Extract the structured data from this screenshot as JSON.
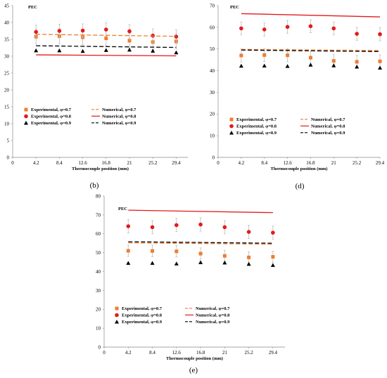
{
  "chart_data": [
    {
      "panel": "(b)",
      "type": "scatter",
      "xlabel": "Thermocouple position (mm)",
      "ylabel": "PEC",
      "x_ticks": [
        "0",
        "4.2",
        "8.4",
        "12.6",
        "16.8",
        "21",
        "25.2",
        "29.4"
      ],
      "y_ticks": [
        "0",
        "5",
        "10",
        "15",
        "20",
        "25",
        "30",
        "35",
        "40",
        "45"
      ],
      "xlim": [
        0,
        31.5
      ],
      "ylim": [
        0,
        45
      ],
      "legend_position": "lower-left",
      "series": [
        {
          "name": "Experimental, φ=0.7",
          "kind": "points",
          "marker": "square",
          "color": "#ED7D31",
          "x": [
            4.2,
            8.4,
            12.6,
            16.8,
            21,
            25.2,
            29.4
          ],
          "y": [
            35.8,
            35.9,
            35.6,
            35.3,
            34.6,
            34.2,
            34.4
          ],
          "err": [
            2.2,
            2.2,
            2.2,
            2.2,
            2.2,
            2.2,
            2.2
          ]
        },
        {
          "name": "Experimental, φ=0.8",
          "kind": "points",
          "marker": "circle",
          "color": "#E31A1C",
          "x": [
            4.2,
            8.4,
            12.6,
            16.8,
            21,
            25.2,
            29.4
          ],
          "y": [
            37.2,
            37.5,
            37.6,
            37.9,
            37.4,
            36.1,
            35.8
          ],
          "err": [
            2.0,
            2.0,
            2.0,
            2.0,
            2.0,
            2.0,
            2.0
          ]
        },
        {
          "name": "Experimental, φ=0.9",
          "kind": "points",
          "marker": "triangle",
          "color": "#000000",
          "x": [
            4.2,
            8.4,
            12.6,
            16.8,
            21,
            25.2,
            29.4
          ],
          "y": [
            31.7,
            31.7,
            31.5,
            31.8,
            31.9,
            31.6,
            31.1
          ],
          "err": [
            0,
            0,
            0,
            0,
            0,
            0,
            0
          ]
        },
        {
          "name": "Numerical, φ=0.7",
          "kind": "line",
          "dash": "6 3",
          "color": "#ED7D31",
          "x": [
            4.2,
            29.4
          ],
          "y": [
            36.5,
            35.9
          ]
        },
        {
          "name": "Numerical, φ=0.8",
          "kind": "line",
          "dash": "",
          "color": "#E31A1C",
          "x": [
            4.2,
            29.4
          ],
          "y": [
            30.4,
            30.1
          ]
        },
        {
          "name": "Numerical, φ=0.9",
          "kind": "line",
          "dash": "6 3",
          "color": "#000000",
          "x": [
            4.2,
            29.4
          ],
          "y": [
            33.1,
            32.6
          ]
        }
      ]
    },
    {
      "panel": "(d)",
      "type": "scatter",
      "xlabel": "Thermocouple position (mm)",
      "ylabel": "PEC",
      "x_ticks": [
        "0",
        "4.2",
        "8.4",
        "12.6",
        "16.8",
        "21",
        "25.2",
        "29.4"
      ],
      "y_ticks": [
        "0",
        "10",
        "20",
        "30",
        "40",
        "50",
        "60",
        "70"
      ],
      "xlim": [
        0,
        29.4
      ],
      "ylim": [
        0,
        70
      ],
      "legend_position": "lower-left",
      "series": [
        {
          "name": "Experimental, φ=0.7",
          "kind": "points",
          "marker": "square",
          "color": "#ED7D31",
          "x": [
            4.2,
            8.4,
            12.6,
            16.8,
            21,
            25.2,
            29.4
          ],
          "y": [
            47,
            47.2,
            47.1,
            46,
            44.5,
            44.1,
            44.3
          ],
          "err": [
            3,
            3,
            3,
            3,
            3,
            3,
            3
          ]
        },
        {
          "name": "Experimental, φ=0.8",
          "kind": "points",
          "marker": "circle",
          "color": "#E31A1C",
          "x": [
            4.2,
            8.4,
            12.6,
            16.8,
            21,
            25.2,
            29.4
          ],
          "y": [
            59.5,
            59,
            60.2,
            60.5,
            59.5,
            57,
            56.8
          ],
          "err": [
            3,
            3,
            3,
            3,
            3,
            3,
            3
          ]
        },
        {
          "name": "Experimental, φ=0.9",
          "kind": "points",
          "marker": "triangle",
          "color": "#000000",
          "x": [
            4.2,
            8.4,
            12.6,
            16.8,
            21,
            25.2,
            29.4
          ],
          "y": [
            42.2,
            42.3,
            42.1,
            42.7,
            42.4,
            41.8,
            41.3
          ],
          "err": [
            0,
            0,
            0,
            0,
            0,
            0,
            0
          ]
        },
        {
          "name": "Numerical, φ=0.7",
          "kind": "line",
          "dash": "6 3",
          "color": "#ED7D31",
          "x": [
            4.2,
            29.4
          ],
          "y": [
            49.8,
            49.3
          ]
        },
        {
          "name": "Numerical, φ=0.8",
          "kind": "line",
          "dash": "",
          "color": "#E31A1C",
          "x": [
            4.2,
            29.4
          ],
          "y": [
            66.3,
            64.8
          ]
        },
        {
          "name": "Numerical, φ=0.9",
          "kind": "line",
          "dash": "6 3",
          "color": "#000000",
          "x": [
            4.2,
            29.4
          ],
          "y": [
            49.5,
            48.8
          ]
        }
      ]
    },
    {
      "panel": "(e)",
      "type": "scatter",
      "xlabel": "Thermocouple position (mm)",
      "ylabel": "PEC",
      "x_ticks": [
        "0",
        "4.2",
        "8.4",
        "12.6",
        "16.8",
        "21",
        "25.2",
        "29.4"
      ],
      "y_ticks": [
        "0",
        "10",
        "20",
        "30",
        "40",
        "50",
        "60",
        "70",
        "80"
      ],
      "xlim": [
        0,
        31.5
      ],
      "ylim": [
        0,
        80
      ],
      "legend_position": "lower-left",
      "series": [
        {
          "name": "Experimental, φ=0.7",
          "kind": "points",
          "marker": "square",
          "color": "#ED7D31",
          "x": [
            4.2,
            8.4,
            12.6,
            16.8,
            21,
            25.2,
            29.4
          ],
          "y": [
            51,
            50.9,
            50.7,
            49.5,
            48.3,
            47.5,
            47.8
          ],
          "err": [
            3,
            3,
            3,
            3,
            3,
            3,
            3
          ]
        },
        {
          "name": "Experimental, φ=0.8",
          "kind": "points",
          "marker": "circle",
          "color": "#E31A1C",
          "x": [
            4.2,
            8.4,
            12.6,
            16.8,
            21,
            25.2,
            29.4
          ],
          "y": [
            64,
            63.5,
            64.6,
            64.9,
            63.5,
            61,
            60.6
          ],
          "err": [
            3.5,
            3.5,
            3.5,
            3.5,
            3.5,
            3.5,
            3.5
          ]
        },
        {
          "name": "Experimental, φ=0.9",
          "kind": "points",
          "marker": "triangle",
          "color": "#000000",
          "x": [
            4.2,
            8.4,
            12.6,
            16.8,
            21,
            25.2,
            29.4
          ],
          "y": [
            44.5,
            44.5,
            44.2,
            44.9,
            44.7,
            44,
            43.4
          ],
          "err": [
            0,
            0,
            0,
            0,
            0,
            0,
            0
          ]
        },
        {
          "name": "Numerical, φ=0.7",
          "kind": "line",
          "dash": "6 3",
          "color": "#ED7D31",
          "x": [
            4.2,
            29.4
          ],
          "y": [
            55.2,
            54.5
          ]
        },
        {
          "name": "Numerical, φ=0.8",
          "kind": "line",
          "dash": "",
          "color": "#E31A1C",
          "x": [
            4.2,
            29.4
          ],
          "y": [
            72.5,
            71.2
          ]
        },
        {
          "name": "Numerical, φ=0.9",
          "kind": "line",
          "dash": "6 3",
          "color": "#000000",
          "x": [
            4.2,
            29.4
          ],
          "y": [
            55.8,
            55
          ]
        }
      ]
    }
  ]
}
